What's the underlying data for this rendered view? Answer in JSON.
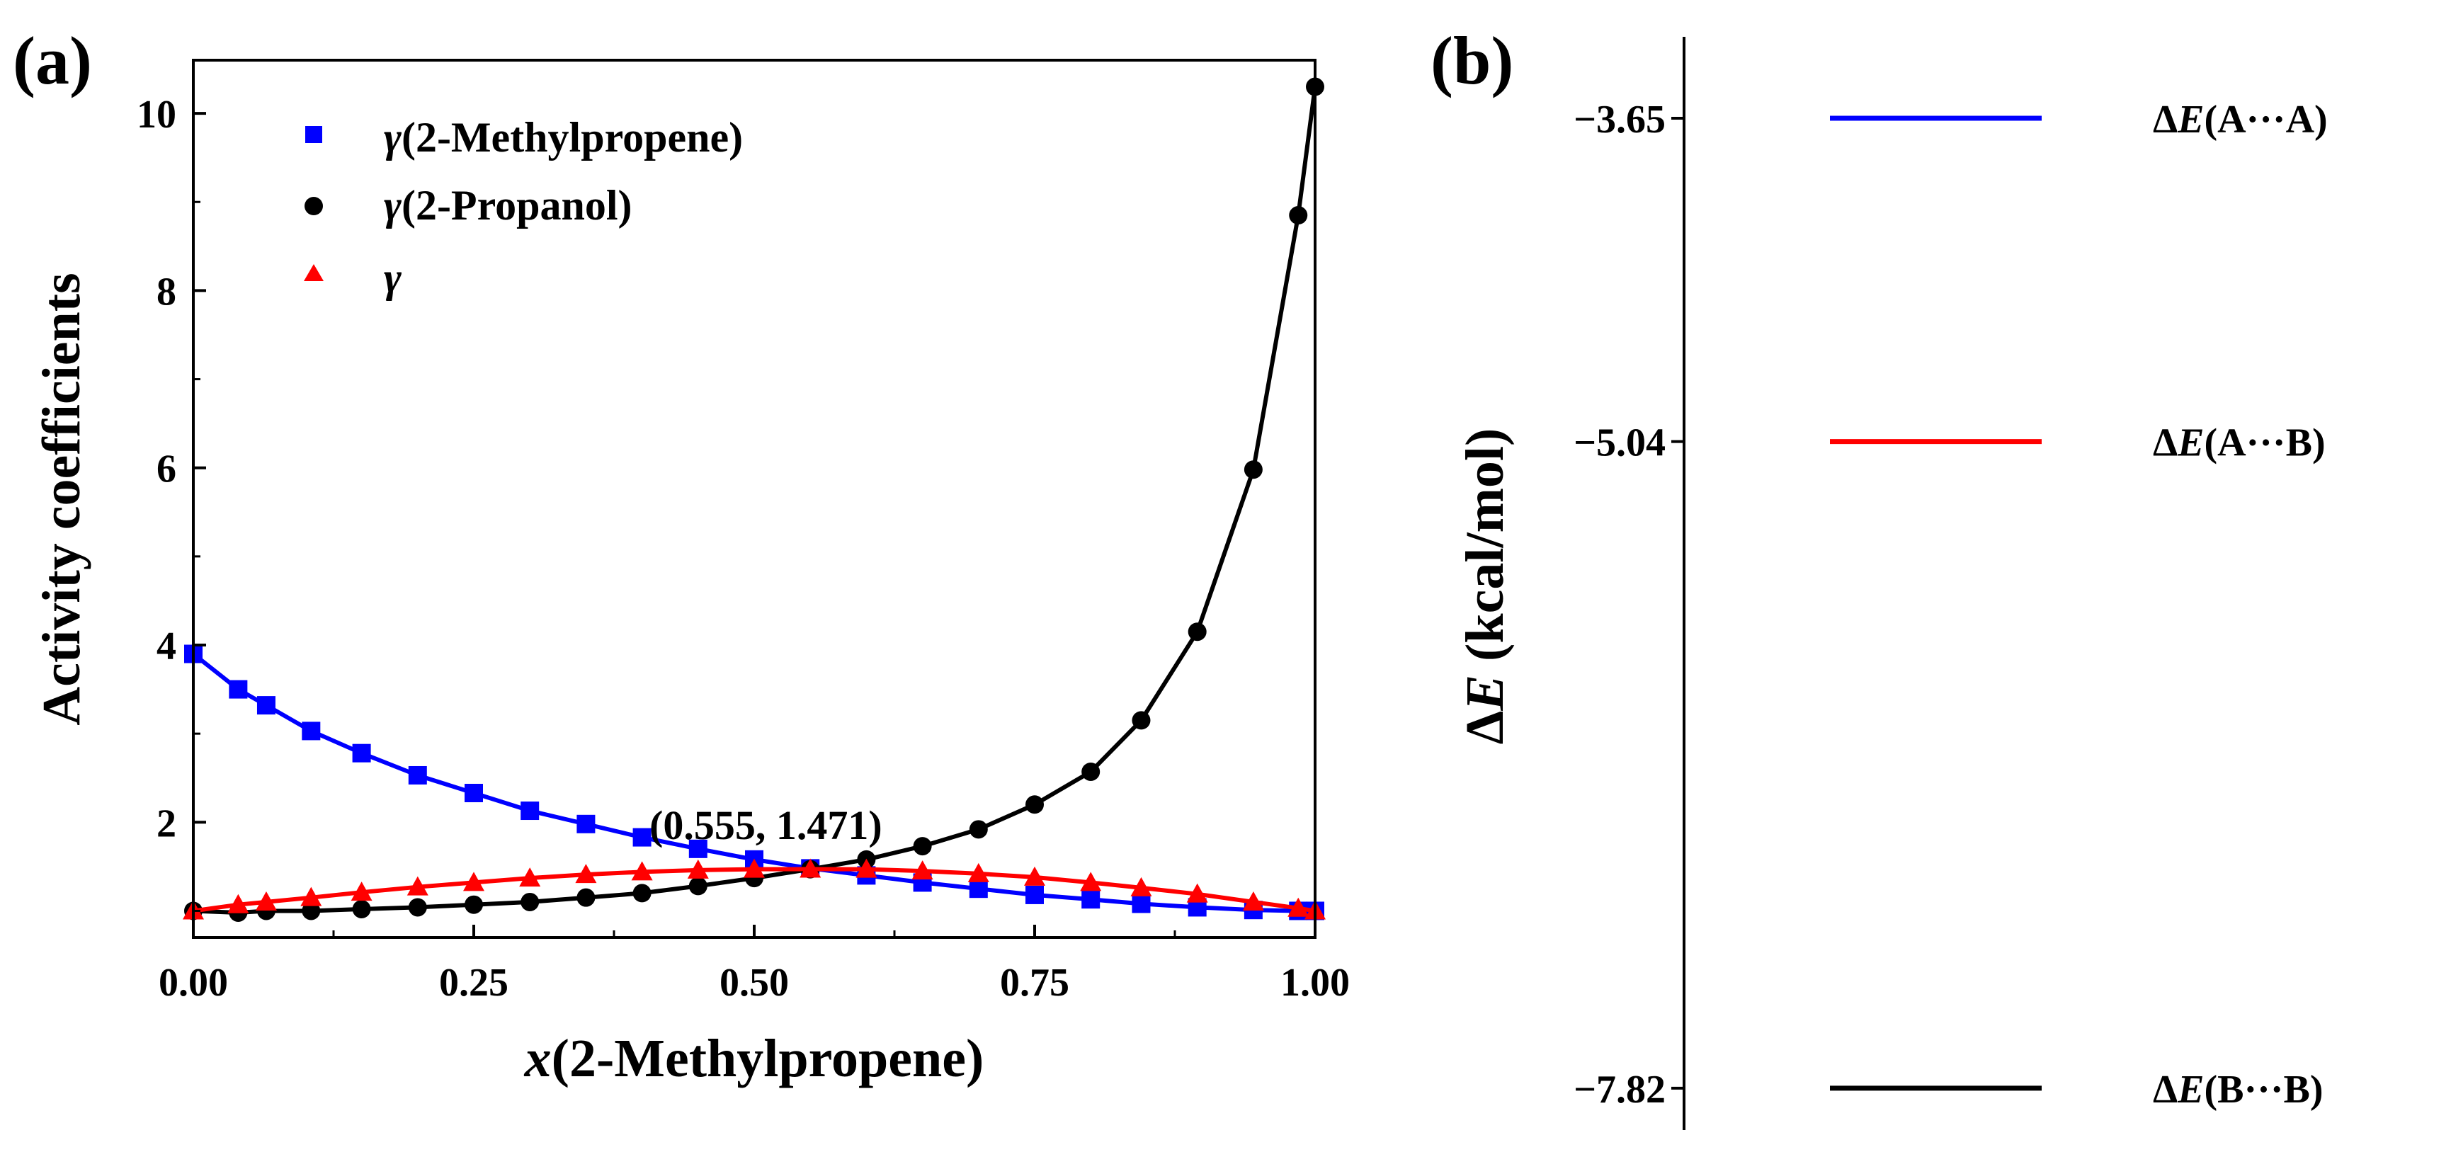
{
  "chart_data": [
    {
      "panel_label": "(a)",
      "type": "line",
      "xlabel": {
        "prefix": "x",
        "rest": "(2-Methylpropene)"
      },
      "ylabel": "Activity coefficients",
      "xlim": [
        0,
        1
      ],
      "ylim": [
        0.7,
        10.6
      ],
      "xticks": [
        "0.00",
        "0.25",
        "0.50",
        "0.75",
        "1.00"
      ],
      "xtick_values": [
        0,
        0.25,
        0.5,
        0.75,
        1.0
      ],
      "yticks": [
        "2",
        "4",
        "6",
        "8",
        "10"
      ],
      "ytick_values": [
        2,
        4,
        6,
        8,
        10
      ],
      "legend_position": "top-left",
      "annotation": {
        "text": "(0.555, 1.471)",
        "x": 0.555,
        "y": 1.471
      },
      "series": [
        {
          "name": {
            "symbol": "γ",
            "rest": "(2-Methylpropene)"
          },
          "color": "#0000ff",
          "marker": "square",
          "points": [
            [
              0.0,
              3.9
            ],
            [
              0.04,
              3.5
            ],
            [
              0.065,
              3.32
            ],
            [
              0.105,
              3.03
            ],
            [
              0.15,
              2.78
            ],
            [
              0.2,
              2.53
            ],
            [
              0.25,
              2.33
            ],
            [
              0.3,
              2.13
            ],
            [
              0.35,
              1.98
            ],
            [
              0.4,
              1.83
            ],
            [
              0.45,
              1.7
            ],
            [
              0.5,
              1.58
            ],
            [
              0.55,
              1.48
            ],
            [
              0.6,
              1.4
            ],
            [
              0.65,
              1.32
            ],
            [
              0.7,
              1.25
            ],
            [
              0.75,
              1.18
            ],
            [
              0.8,
              1.13
            ],
            [
              0.845,
              1.08
            ],
            [
              0.895,
              1.04
            ],
            [
              0.945,
              1.01
            ],
            [
              0.985,
              1.0
            ],
            [
              1.0,
              1.0
            ]
          ]
        },
        {
          "name": {
            "symbol": "γ",
            "rest": "(2-Propanol)"
          },
          "color": "#000000",
          "marker": "circle",
          "points": [
            [
              0.0,
              1.0
            ],
            [
              0.04,
              0.98
            ],
            [
              0.065,
              1.0
            ],
            [
              0.105,
              1.0
            ],
            [
              0.15,
              1.02
            ],
            [
              0.2,
              1.04
            ],
            [
              0.25,
              1.07
            ],
            [
              0.3,
              1.1
            ],
            [
              0.35,
              1.15
            ],
            [
              0.4,
              1.2
            ],
            [
              0.45,
              1.28
            ],
            [
              0.5,
              1.37
            ],
            [
              0.55,
              1.47
            ],
            [
              0.6,
              1.58
            ],
            [
              0.65,
              1.73
            ],
            [
              0.7,
              1.92
            ],
            [
              0.75,
              2.2
            ],
            [
              0.8,
              2.57
            ],
            [
              0.845,
              3.15
            ],
            [
              0.895,
              4.15
            ],
            [
              0.945,
              5.98
            ],
            [
              0.985,
              8.85
            ],
            [
              1.0,
              10.3
            ]
          ]
        },
        {
          "name": {
            "symbol": "γ",
            "rest": ""
          },
          "color": "#ff0000",
          "marker": "triangle",
          "points": [
            [
              0.0,
              1.0
            ],
            [
              0.04,
              1.07
            ],
            [
              0.065,
              1.1
            ],
            [
              0.105,
              1.15
            ],
            [
              0.15,
              1.21
            ],
            [
              0.2,
              1.27
            ],
            [
              0.25,
              1.32
            ],
            [
              0.3,
              1.37
            ],
            [
              0.35,
              1.41
            ],
            [
              0.4,
              1.44
            ],
            [
              0.45,
              1.46
            ],
            [
              0.5,
              1.47
            ],
            [
              0.55,
              1.471
            ],
            [
              0.6,
              1.47
            ],
            [
              0.65,
              1.45
            ],
            [
              0.7,
              1.42
            ],
            [
              0.75,
              1.38
            ],
            [
              0.8,
              1.32
            ],
            [
              0.845,
              1.26
            ],
            [
              0.895,
              1.19
            ],
            [
              0.945,
              1.1
            ],
            [
              0.985,
              1.03
            ],
            [
              1.0,
              1.0
            ]
          ]
        }
      ]
    },
    {
      "panel_label": "(b)",
      "type": "energy-level",
      "ylabel": {
        "prefix": "Δ",
        "italic": "E",
        "rest": " (kcal/mol)"
      },
      "ylim": [
        -8.0,
        -3.3
      ],
      "levels": [
        {
          "value": -3.65,
          "tick_label": "−3.65",
          "label": {
            "prefix": "Δ",
            "italic": "E",
            "rest": "(A···A)"
          },
          "color": "#0000ff"
        },
        {
          "value": -5.04,
          "tick_label": "−5.04",
          "label": {
            "prefix": "Δ",
            "italic": "E",
            "rest": "(A···B)"
          },
          "color": "#ff0000"
        },
        {
          "value": -7.82,
          "tick_label": "−7.82",
          "label": {
            "prefix": "Δ",
            "italic": "E",
            "rest": "(B···B)"
          },
          "color": "#000000"
        }
      ]
    }
  ]
}
